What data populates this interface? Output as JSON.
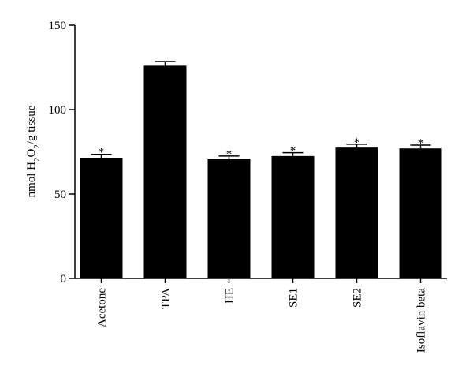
{
  "chart_data": {
    "type": "bar",
    "y_label": "nmol H2O2/g tissue",
    "categories": [
      "Acetone",
      "TPA",
      "HE",
      "SE1",
      "SE2",
      "Isoflavin beta"
    ],
    "values": [
      71.5,
      126,
      71,
      72.5,
      77.5,
      77
    ],
    "errors": [
      2,
      2.5,
      1.5,
      2,
      2,
      2
    ],
    "annotations": [
      "*",
      null,
      "*",
      "*",
      "*",
      "*"
    ],
    "color": "#000000",
    "ylim": [
      0,
      150
    ],
    "yticks": [
      0,
      50,
      100,
      150
    ],
    "grid": false
  }
}
